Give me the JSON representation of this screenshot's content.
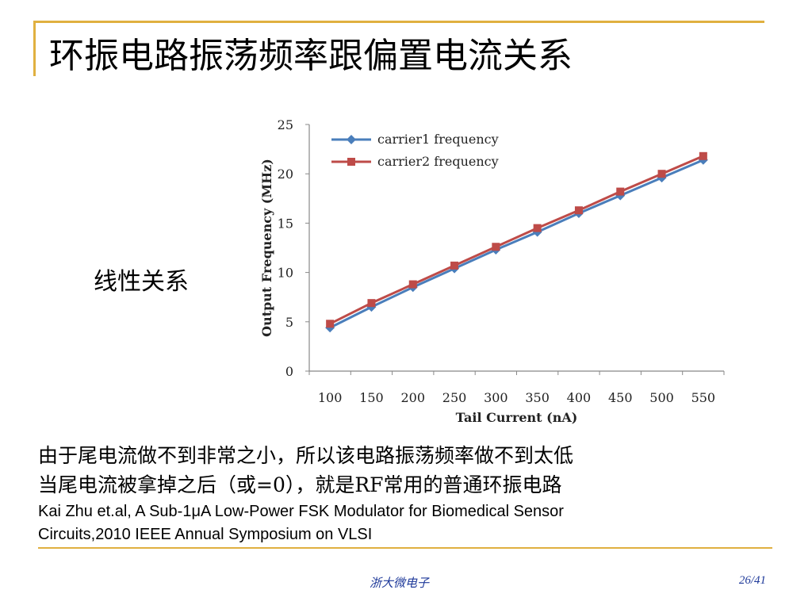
{
  "slide": {
    "title": "环振电路振荡频率跟偏置电流关系",
    "side_label": "线性关系",
    "note_line1": "由于尾电流做不到非常之小，所以该电路振荡频率做不到太低",
    "note_line2": "当尾电流被拿掉之后（或=0），就是RF常用的普通环振电路",
    "ref_line1": "Kai Zhu et.al, A Sub-1μA Low-Power FSK Modulator for Biomedical Sensor",
    "ref_line2": "Circuits,2010 IEEE Annual Symposium on VLSI",
    "footer_center": "浙大微电子",
    "footer_page": "26/41"
  },
  "colors": {
    "accent_line": "#e0b040",
    "footer_text": "#1f3a9a",
    "series1": "#4a7ebb",
    "series2": "#be4b48"
  },
  "chart_data": {
    "type": "line",
    "title": "",
    "xlabel": "Tail Current (nA)",
    "ylabel": "Output Frequency (MHz)",
    "x": [
      100,
      150,
      200,
      250,
      300,
      350,
      400,
      450,
      500,
      550
    ],
    "ylim": [
      0,
      25
    ],
    "yticks": [
      0,
      5,
      10,
      15,
      20,
      25
    ],
    "grid": false,
    "legend_position": "top-left",
    "series": [
      {
        "name": "carrier1 frequency",
        "color": "#4a7ebb",
        "marker": "diamond",
        "values": [
          4.4,
          6.5,
          8.5,
          10.4,
          12.3,
          14.1,
          16.0,
          17.8,
          19.6,
          21.4
        ]
      },
      {
        "name": "carrier2 frequency",
        "color": "#be4b48",
        "marker": "square",
        "values": [
          4.8,
          6.9,
          8.8,
          10.7,
          12.6,
          14.5,
          16.3,
          18.2,
          20.0,
          21.8
        ]
      }
    ]
  }
}
